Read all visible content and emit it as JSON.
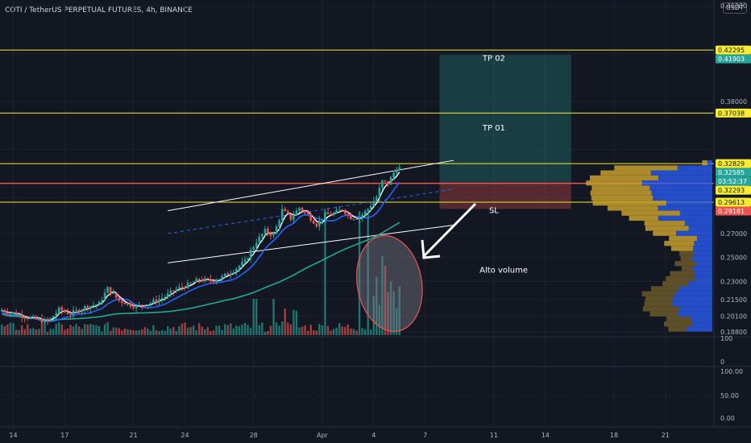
{
  "header": {
    "title": "COTI / TetherUS PERPETUAL FUTURES, 4h, BINANCE",
    "currency": "USDT"
  },
  "chart_data": {
    "type": "candlestick",
    "price_axis": {
      "ticks": [
        "0.46000",
        "0.38000",
        "0.27000",
        "0.25000",
        "0.23000",
        "0.21500",
        "0.20100",
        "0.18800"
      ],
      "range": [
        0.188,
        0.462
      ]
    },
    "price_tags": [
      {
        "label": "0.42295",
        "value": 0.42295,
        "bg": "#f7ec30",
        "fg": "#131722"
      },
      {
        "label": "0.41903",
        "value": 0.41903,
        "bg": "#26a69a",
        "fg": "#ffffff"
      },
      {
        "label": "0.37038",
        "value": 0.37038,
        "bg": "#f7ec30",
        "fg": "#131722"
      },
      {
        "label": "0.32829",
        "value": 0.32829,
        "bg": "#f7ec30",
        "fg": "#131722"
      },
      {
        "label": "0.32585",
        "value": 0.32585,
        "bg": "#26a69a",
        "fg": "#ffffff"
      },
      {
        "label": "03:52:37",
        "value": 0.3215,
        "bg": "#26a69a",
        "fg": "#ffffff"
      },
      {
        "label": "0.32293",
        "value": 0.3168,
        "bg": "#f7ec30",
        "fg": "#131722"
      },
      {
        "label": "0.29613",
        "value": 0.29613,
        "bg": "#f7ec30",
        "fg": "#131722"
      },
      {
        "label": "0.29181",
        "value": 0.29181,
        "bg": "#ef5350",
        "fg": "#ffffff"
      }
    ],
    "horizontal_levels": [
      0.42295,
      0.37038,
      0.32829,
      0.29613
    ],
    "volume_pane": {
      "ticks": [
        "100",
        "0"
      ]
    },
    "oscillator_pane": {
      "ticks": [
        "100.00",
        "50.00",
        "0.00"
      ]
    },
    "x_axis": {
      "labels": [
        {
          "label": "14",
          "bar": 4
        },
        {
          "label": "17",
          "bar": 22
        },
        {
          "label": "21",
          "bar": 46
        },
        {
          "label": "24",
          "bar": 64
        },
        {
          "label": "28",
          "bar": 88
        },
        {
          "label": "Apr",
          "bar": 112
        },
        {
          "label": "4",
          "bar": 130
        },
        {
          "label": "7",
          "bar": 148
        },
        {
          "label": "11",
          "bar": 172
        },
        {
          "label": "14",
          "bar": 190
        },
        {
          "label": "18",
          "bar": 214
        },
        {
          "label": "21",
          "bar": 232
        }
      ]
    },
    "trade_box": {
      "start_bar": 153,
      "end_bar": 199,
      "entry": 0.3125,
      "target": 0.41903,
      "stop": 0.2905
    },
    "annotations": [
      {
        "text": "TP 02",
        "bar": 172,
        "value": 0.414
      },
      {
        "text": "TP 01",
        "bar": 172,
        "value": 0.356
      },
      {
        "text": "SL",
        "bar": 172,
        "value": 0.287
      },
      {
        "text": "Alto volume",
        "bar": 167,
        "value": 0.2375
      }
    ],
    "channel": {
      "upper": [
        [
          58,
          0.289
        ],
        [
          158,
          0.331
        ]
      ],
      "lower": [
        [
          58,
          0.2455
        ],
        [
          158,
          0.277
        ]
      ],
      "mid": [
        [
          58,
          0.27
        ],
        [
          158,
          0.307
        ]
      ]
    },
    "price_path": [
      [
        0,
        0.2065
      ],
      [
        6,
        0.203
      ],
      [
        12,
        0.199
      ],
      [
        17,
        0.1965
      ],
      [
        21,
        0.2065
      ],
      [
        25,
        0.203
      ],
      [
        30,
        0.2085
      ],
      [
        35,
        0.2115
      ],
      [
        38,
        0.224
      ],
      [
        42,
        0.214
      ],
      [
        48,
        0.209
      ],
      [
        54,
        0.213
      ],
      [
        58,
        0.2175
      ],
      [
        62,
        0.2235
      ],
      [
        66,
        0.227
      ],
      [
        70,
        0.2315
      ],
      [
        74,
        0.2305
      ],
      [
        78,
        0.2335
      ],
      [
        82,
        0.2395
      ],
      [
        86,
        0.2465
      ],
      [
        88,
        0.2555
      ],
      [
        90,
        0.2635
      ],
      [
        93,
        0.272
      ],
      [
        96,
        0.2685
      ],
      [
        99,
        0.2895
      ],
      [
        102,
        0.2825
      ],
      [
        105,
        0.2915
      ],
      [
        108,
        0.2855
      ],
      [
        111,
        0.2775
      ],
      [
        114,
        0.2855
      ],
      [
        117,
        0.2865
      ],
      [
        120,
        0.2905
      ],
      [
        123,
        0.2835
      ],
      [
        126,
        0.2835
      ],
      [
        129,
        0.2905
      ],
      [
        132,
        0.3005
      ],
      [
        134,
        0.3135
      ],
      [
        136,
        0.3115
      ],
      [
        138,
        0.3205
      ],
      [
        139,
        0.3245
      ]
    ]
  }
}
